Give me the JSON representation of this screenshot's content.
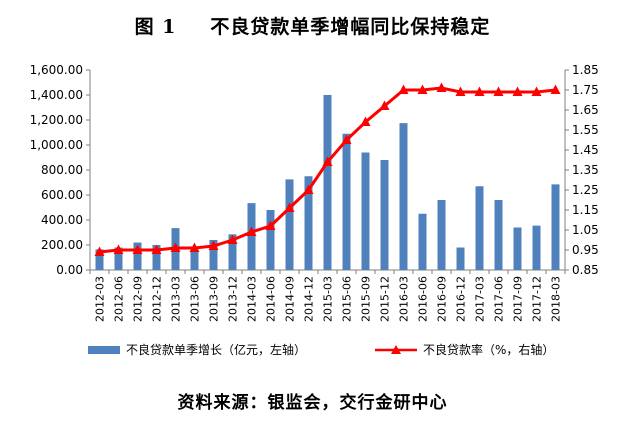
{
  "title_num": "图 1",
  "title_text": "不良贷款单季增幅同比保持稳定",
  "source": "资料来源：银监会，交行金研中心",
  "colors": {
    "bar": "#4f81bd",
    "line": "#ff0000",
    "axis": "#808080"
  },
  "chart_data": {
    "type": "bar+line",
    "categories": [
      "2012-03",
      "2012-06",
      "2012-09",
      "2012-12",
      "2013-03",
      "2013-06",
      "2013-09",
      "2013-12",
      "2014-03",
      "2014-06",
      "2014-09",
      "2014-12",
      "2015-03",
      "2015-06",
      "2015-09",
      "2015-12",
      "2016-03",
      "2016-06",
      "2016-09",
      "2016-12",
      "2017-03",
      "2017-06",
      "2017-09",
      "2017-12",
      "2018-03"
    ],
    "series": [
      {
        "name": "不良贷款单季增长（亿元，左轴）",
        "type": "bar",
        "axis": "left",
        "values": [
          165,
          180,
          220,
          200,
          335,
          160,
          240,
          285,
          535,
          480,
          725,
          750,
          1400,
          1090,
          940,
          880,
          1175,
          450,
          560,
          180,
          670,
          560,
          340,
          355,
          685
        ]
      },
      {
        "name": "不良贷款率（%，右轴）",
        "type": "line",
        "axis": "right",
        "values": [
          0.94,
          0.95,
          0.95,
          0.95,
          0.96,
          0.96,
          0.97,
          1.0,
          1.04,
          1.07,
          1.16,
          1.25,
          1.39,
          1.5,
          1.59,
          1.67,
          1.75,
          1.75,
          1.76,
          1.74,
          1.74,
          1.74,
          1.74,
          1.74,
          1.75
        ]
      }
    ],
    "ylim_left": [
      0,
      1600
    ],
    "yticks_left": [
      "0.00",
      "200.00",
      "400.00",
      "600.00",
      "800.00",
      "1,000.00",
      "1,200.00",
      "1,400.00",
      "1,600.00"
    ],
    "ylim_right": [
      0.85,
      1.85
    ],
    "yticks_right": [
      "0.85",
      "0.95",
      "1.05",
      "1.15",
      "1.25",
      "1.35",
      "1.45",
      "1.55",
      "1.65",
      "1.75",
      "1.85"
    ],
    "legend_position": "bottom",
    "grid": false
  }
}
